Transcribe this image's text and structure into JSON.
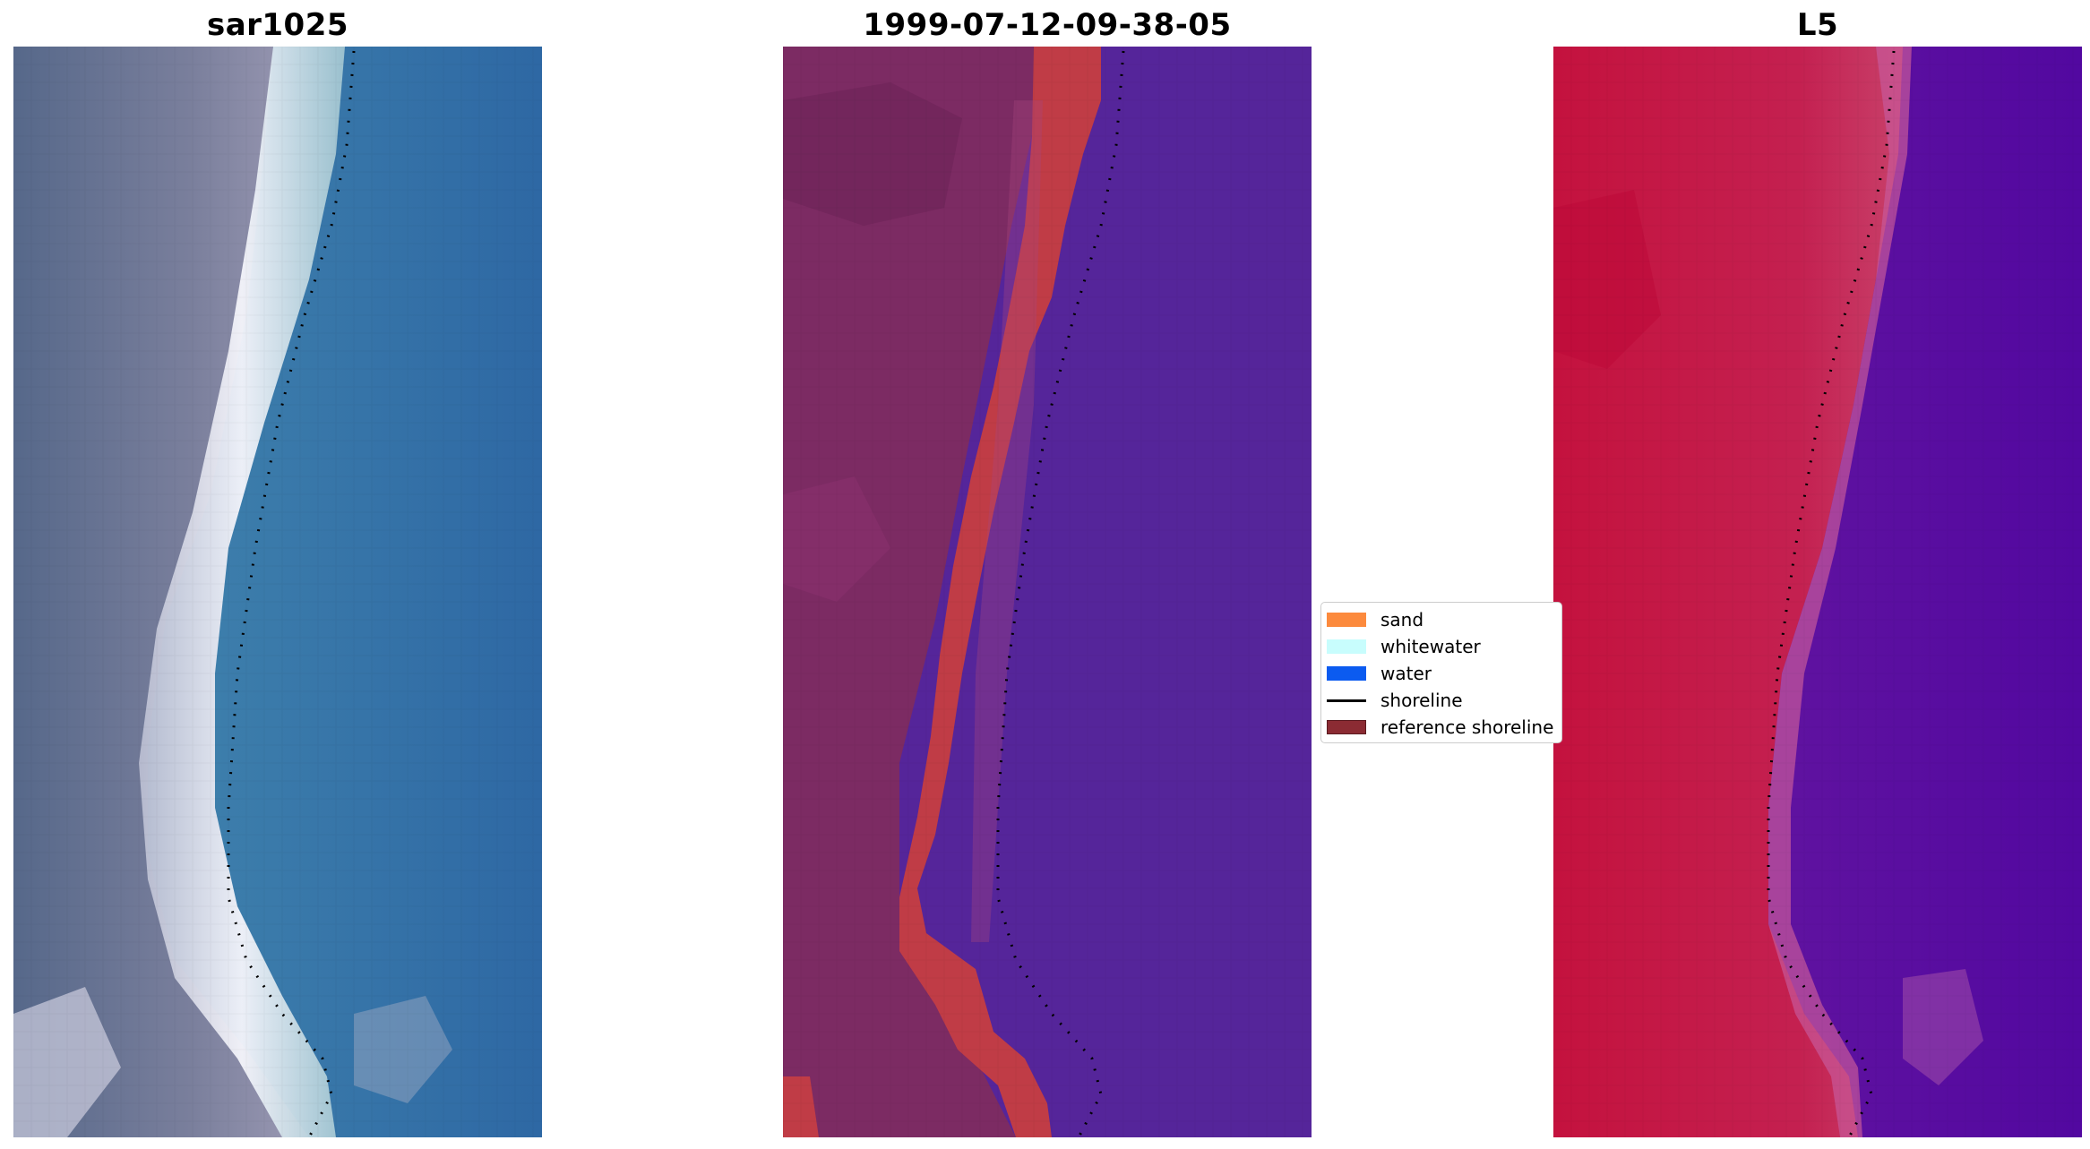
{
  "panels": [
    {
      "title": "sar1025"
    },
    {
      "title": "1999-07-12-09-38-05"
    },
    {
      "title": "L5"
    }
  ],
  "legend": {
    "items": [
      {
        "label": "sand",
        "color": "#fc8a3d"
      },
      {
        "label": "whitewater",
        "color": "#c8fdfd"
      },
      {
        "label": "water",
        "color": "#0b5bf0"
      },
      {
        "label": "shoreline",
        "color": "#000000"
      },
      {
        "label": "reference shoreline",
        "color": "#8b2b33"
      }
    ]
  },
  "colors": {
    "sar_sea": "#3a77a8",
    "sar_land": "#58698a",
    "class_water": "#55259a",
    "class_land": "#7c2b63",
    "class_sand": "#c03c46",
    "l5_land": "#c41a48",
    "l5_sea": "#5a0aa0"
  }
}
